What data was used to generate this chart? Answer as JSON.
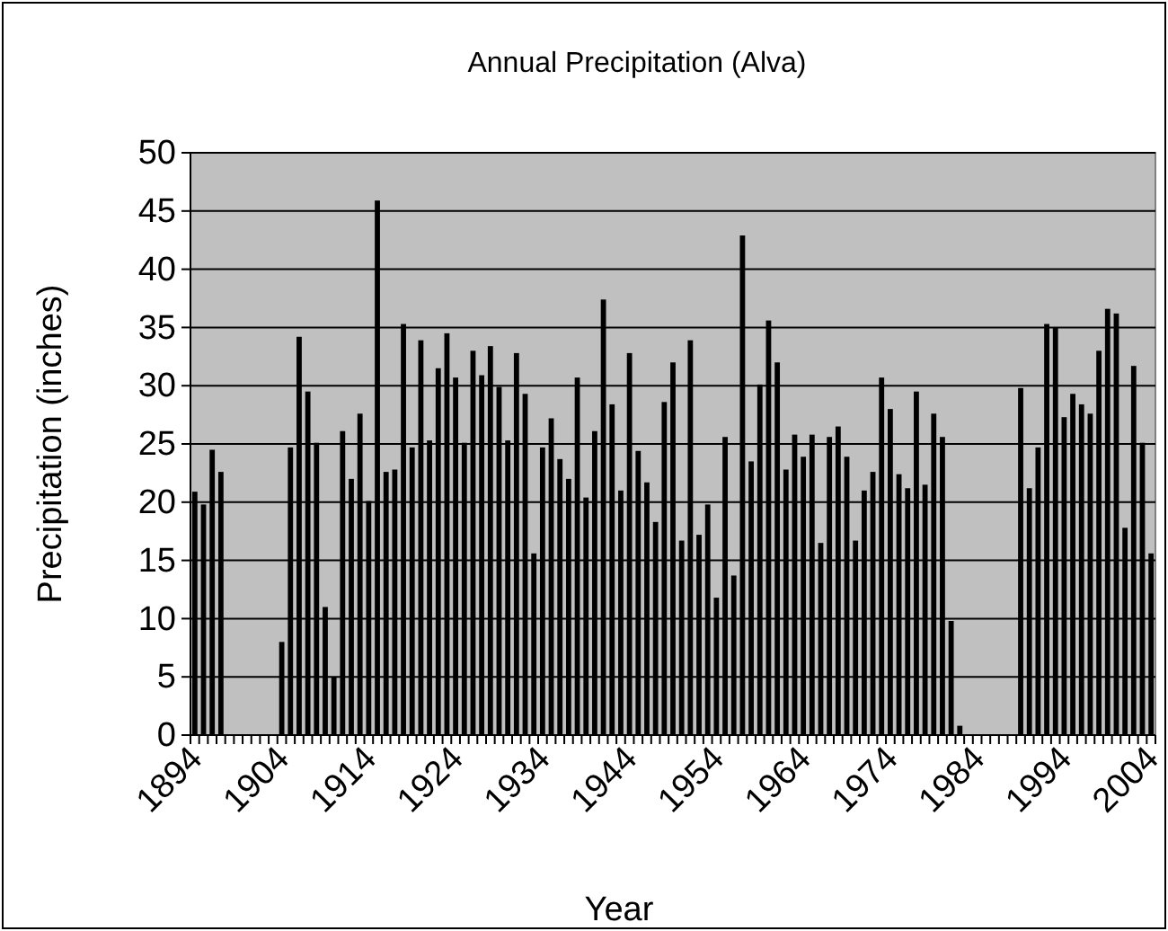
{
  "chart_data": {
    "type": "bar",
    "title": "Annual Precipitation (Alva)",
    "xlabel": "Year",
    "ylabel": "Precipitation (inches)",
    "categories": [
      "1894",
      null,
      null,
      null,
      null,
      null,
      null,
      null,
      null,
      null,
      "1904",
      null,
      null,
      null,
      null,
      null,
      null,
      null,
      null,
      null,
      "1914",
      null,
      null,
      null,
      null,
      null,
      null,
      null,
      null,
      null,
      "1924",
      null,
      null,
      null,
      null,
      null,
      null,
      null,
      null,
      null,
      "1934",
      null,
      null,
      null,
      null,
      null,
      null,
      null,
      null,
      null,
      "1944",
      null,
      null,
      null,
      null,
      null,
      null,
      null,
      null,
      null,
      "1954",
      null,
      null,
      null,
      null,
      null,
      null,
      null,
      null,
      null,
      "1964",
      null,
      null,
      null,
      null,
      null,
      null,
      null,
      null,
      null,
      "1974",
      null,
      null,
      null,
      null,
      null,
      null,
      null,
      null,
      null,
      "1984",
      null,
      null,
      null,
      null,
      null,
      null,
      null,
      null,
      null,
      "1994",
      null,
      null,
      null,
      null,
      null,
      null,
      null,
      null,
      null,
      "2004"
    ],
    "values": [
      20.9,
      19.8,
      24.5,
      22.6,
      null,
      null,
      null,
      null,
      null,
      null,
      8.0,
      24.7,
      34.2,
      29.5,
      25.1,
      11.0,
      5.0,
      26.1,
      22.0,
      27.6,
      20.1,
      45.9,
      22.6,
      22.8,
      35.3,
      24.7,
      33.9,
      25.3,
      31.5,
      34.5,
      30.7,
      25.1,
      33.0,
      30.9,
      33.4,
      29.9,
      25.3,
      32.8,
      29.3,
      15.6,
      24.7,
      27.2,
      23.7,
      22.0,
      30.7,
      20.4,
      26.1,
      37.4,
      28.4,
      21.0,
      32.8,
      24.4,
      21.7,
      18.3,
      28.6,
      32.0,
      16.7,
      33.9,
      17.2,
      19.8,
      11.8,
      25.6,
      13.7,
      42.9,
      23.5,
      30.1,
      35.6,
      32.0,
      22.8,
      25.8,
      23.9,
      25.8,
      16.5,
      25.6,
      26.5,
      23.9,
      16.7,
      21.0,
      22.6,
      30.7,
      28.0,
      22.4,
      21.2,
      29.5,
      21.5,
      27.6,
      25.6,
      9.8,
      0.8,
      null,
      null,
      null,
      null,
      null,
      null,
      29.8,
      21.2,
      24.7,
      35.3,
      35.0,
      27.3,
      29.3,
      28.4,
      27.6,
      33.0,
      36.6,
      36.2,
      17.8,
      31.7,
      25.1,
      15.6
    ],
    "color": "#000000",
    "ylim": [
      0,
      50
    ],
    "yticks": [
      0,
      5,
      10,
      15,
      20,
      25,
      30,
      35,
      40,
      45,
      50
    ],
    "grid": "y"
  }
}
